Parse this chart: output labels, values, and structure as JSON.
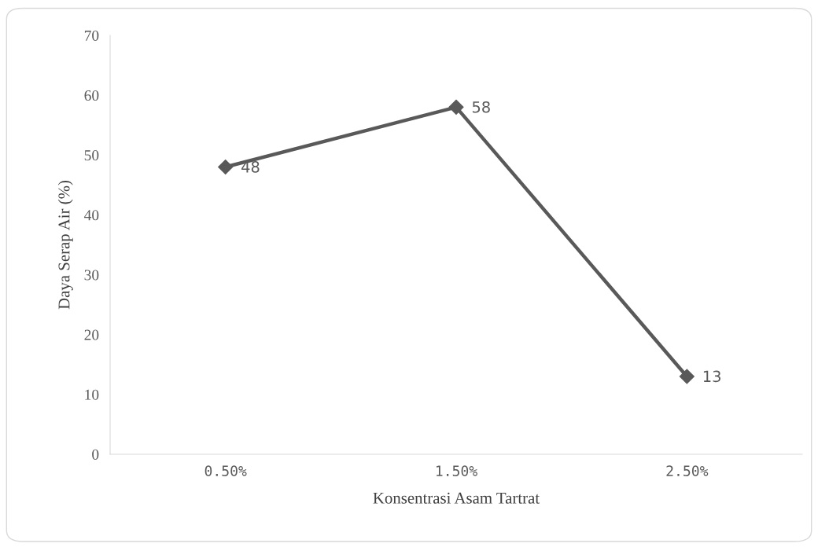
{
  "chart_data": {
    "type": "line",
    "xlabel": "Konsentrasi Asam Tartrat",
    "ylabel": "Daya Serap Air (%)",
    "categories": [
      "0.50%",
      "1.50%",
      "2.50%"
    ],
    "series": [
      {
        "color": "#595959",
        "values": [
          48,
          58,
          13
        ]
      }
    ],
    "ylim": [
      0,
      70
    ],
    "yticks": [
      0,
      10,
      20,
      30,
      40,
      50,
      60,
      70
    ],
    "grid": false,
    "legend": false,
    "marker": "diamond",
    "line_style": "solid",
    "data_labels": true
  }
}
